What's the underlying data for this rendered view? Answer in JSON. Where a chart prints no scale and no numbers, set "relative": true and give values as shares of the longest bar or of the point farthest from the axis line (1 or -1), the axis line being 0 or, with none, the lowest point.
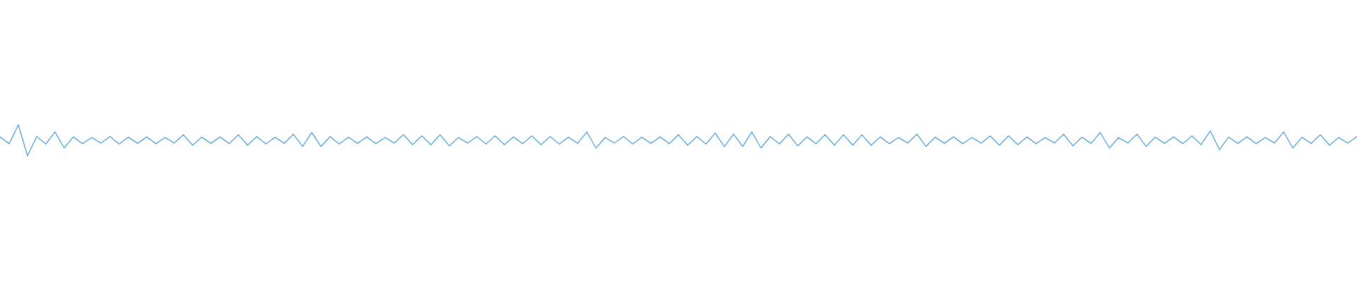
{
  "chart_data": {
    "type": "line",
    "relative": true,
    "categories": [
      null,
      null,
      null,
      null,
      null,
      null,
      null,
      null,
      null,
      null,
      null,
      null,
      null,
      null,
      null,
      null,
      null,
      null,
      null,
      null,
      null,
      null,
      null,
      null,
      null,
      null,
      null,
      null,
      null,
      null,
      null,
      null,
      null,
      null,
      null,
      null,
      null,
      null,
      null,
      null,
      null,
      null,
      null,
      null,
      null,
      null,
      null,
      null,
      null,
      null,
      null,
      null,
      null,
      null,
      null,
      null,
      null,
      null,
      null,
      null,
      null,
      null,
      null,
      null,
      null,
      null,
      null,
      null,
      null,
      null,
      null,
      null,
      null,
      null,
      null,
      null,
      null,
      null,
      null,
      null,
      null,
      null,
      null,
      null,
      null,
      null,
      null,
      null,
      null,
      null,
      null,
      null,
      null,
      null,
      null,
      null,
      null,
      null,
      null,
      null,
      null,
      null,
      null,
      null,
      null,
      null,
      null,
      null,
      null,
      null,
      null,
      null,
      null,
      null,
      null,
      null,
      null,
      null,
      null,
      null,
      null,
      null,
      null,
      null,
      null,
      null,
      null,
      null,
      null,
      null,
      null,
      null,
      null,
      null,
      null,
      null,
      null,
      null,
      null,
      null,
      null,
      null,
      null,
      null,
      null,
      null,
      null,
      null,
      null
    ],
    "series": [
      {
        "color": "#5dade2",
        "values": [
          0.61,
          0.39,
          1.0,
          0.0,
          0.62,
          0.38,
          0.77,
          0.25,
          0.61,
          0.39,
          0.59,
          0.41,
          0.62,
          0.38,
          0.6,
          0.4,
          0.61,
          0.39,
          0.59,
          0.41,
          0.68,
          0.34,
          0.6,
          0.4,
          0.61,
          0.39,
          0.68,
          0.34,
          0.62,
          0.38,
          0.6,
          0.4,
          0.7,
          0.3,
          0.75,
          0.3,
          0.62,
          0.38,
          0.6,
          0.4,
          0.61,
          0.39,
          0.59,
          0.41,
          0.68,
          0.36,
          0.64,
          0.36,
          0.68,
          0.32,
          0.59,
          0.41,
          0.62,
          0.38,
          0.64,
          0.36,
          0.61,
          0.39,
          0.64,
          0.36,
          0.62,
          0.38,
          0.6,
          0.4,
          0.77,
          0.25,
          0.59,
          0.41,
          0.62,
          0.38,
          0.6,
          0.4,
          0.61,
          0.39,
          0.68,
          0.34,
          0.62,
          0.38,
          0.73,
          0.3,
          0.7,
          0.3,
          0.77,
          0.25,
          0.62,
          0.38,
          0.7,
          0.32,
          0.61,
          0.39,
          0.68,
          0.34,
          0.68,
          0.34,
          0.68,
          0.34,
          0.61,
          0.39,
          0.59,
          0.41,
          0.7,
          0.3,
          0.6,
          0.4,
          0.61,
          0.39,
          0.59,
          0.41,
          0.64,
          0.34,
          0.64,
          0.36,
          0.61,
          0.39,
          0.59,
          0.41,
          0.7,
          0.32,
          0.6,
          0.4,
          0.75,
          0.25,
          0.59,
          0.41,
          0.7,
          0.3,
          0.6,
          0.4,
          0.61,
          0.39,
          0.64,
          0.36,
          0.8,
          0.2,
          0.6,
          0.4,
          0.61,
          0.39,
          0.59,
          0.41,
          0.77,
          0.25,
          0.6,
          0.4,
          0.68,
          0.34,
          0.59,
          0.41,
          0.62
        ]
      }
    ]
  }
}
